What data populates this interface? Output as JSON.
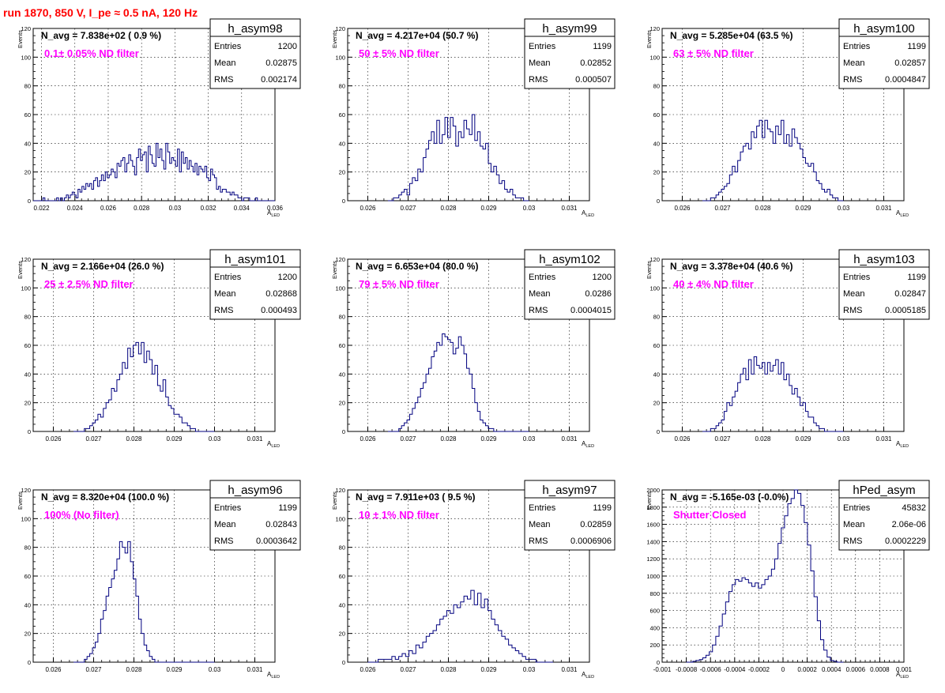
{
  "suptitle": "run 1870,   850 V, I_pe ≈ 0.5 nA, 120 Hz",
  "colors": {
    "hist": "#00007f",
    "annotation": "#ff00ff",
    "suptitle": "#ff0000",
    "grid": "#000000"
  },
  "axis_labels": {
    "y": "Events",
    "x_main": "A",
    "x_sub": "LED"
  },
  "stats_labels": {
    "entries": "Entries",
    "mean": "Mean",
    "rms": "RMS"
  },
  "chart_data": [
    {
      "type": "histogram",
      "name": "h_asym98",
      "navg": "N_avg = 7.838e+02 ( 0.9 %)",
      "annotation": "0.1± 0.05% ND filter",
      "stats": {
        "entries": "1200",
        "mean": "0.02875",
        "rms": "0.002174"
      },
      "xlim": [
        0.0215,
        0.036
      ],
      "xticks": [
        "0.022",
        "0.024",
        "0.026",
        "0.028",
        "0.03",
        "0.032",
        "0.034",
        "0.036"
      ],
      "ylim": [
        0,
        120
      ],
      "yticks": [
        "0",
        "20",
        "40",
        "60",
        "80",
        "100",
        "120"
      ],
      "bin_edges": [
        0.0215,
        0.036
      ],
      "counts": [
        0,
        0,
        0,
        0,
        0,
        2,
        0,
        0,
        0,
        0,
        0,
        0,
        2,
        0,
        2,
        0,
        2,
        4,
        2,
        4,
        6,
        4,
        2,
        8,
        6,
        10,
        8,
        12,
        10,
        12,
        8,
        14,
        16,
        10,
        14,
        18,
        14,
        20,
        16,
        18,
        22,
        20,
        16,
        26,
        24,
        28,
        30,
        20,
        26,
        32,
        28,
        24,
        18,
        30,
        36,
        28,
        32,
        34,
        20,
        38,
        32,
        26,
        24,
        40,
        30,
        36,
        28,
        22,
        40,
        34,
        26,
        30,
        28,
        24,
        36,
        20,
        34,
        26,
        30,
        22,
        28,
        24,
        20,
        26,
        18,
        24,
        22,
        20,
        24,
        16,
        14,
        22,
        18,
        16,
        8,
        10,
        6,
        8,
        8,
        6,
        6,
        4,
        6,
        4,
        4,
        2,
        2,
        0,
        2,
        2,
        2,
        0,
        0,
        0,
        2,
        0,
        0,
        0,
        0,
        0,
        0,
        0,
        0,
        0
      ]
    },
    {
      "type": "histogram",
      "name": "h_asym99",
      "navg": "N_avg = 4.217e+04 (50.7 %)",
      "annotation": "50 ± 5% ND filter",
      "stats": {
        "entries": "1199",
        "mean": "0.02852",
        "rms": "0.000507"
      },
      "xlim": [
        0.0255,
        0.0315
      ],
      "xticks": [
        "0.026",
        "0.027",
        "0.028",
        "0.029",
        "0.03",
        "0.031"
      ],
      "ylim": [
        0,
        120
      ],
      "yticks": [
        "0",
        "20",
        "40",
        "60",
        "80",
        "100",
        "120"
      ],
      "bin_edges": [
        0.0265,
        0.03
      ],
      "counts": [
        0,
        0,
        2,
        2,
        4,
        6,
        8,
        4,
        12,
        16,
        14,
        22,
        20,
        30,
        36,
        42,
        48,
        40,
        56,
        40,
        46,
        58,
        44,
        58,
        52,
        38,
        48,
        44,
        56,
        50,
        46,
        60,
        42,
        48,
        38,
        36,
        40,
        26,
        20,
        24,
        18,
        12,
        14,
        8,
        6,
        8,
        4,
        2,
        2,
        2,
        0,
        0
      ]
    },
    {
      "type": "histogram",
      "name": "h_asym100",
      "navg": "N_avg = 5.285e+04 (63.5 %)",
      "annotation": "63 ± 5% ND filter",
      "stats": {
        "entries": "1199",
        "mean": "0.02857",
        "rms": "0.0004847"
      },
      "xlim": [
        0.0255,
        0.0315
      ],
      "xticks": [
        "0.026",
        "0.027",
        "0.028",
        "0.029",
        "0.03",
        "0.031"
      ],
      "ylim": [
        0,
        120
      ],
      "yticks": [
        "0",
        "20",
        "40",
        "60",
        "80",
        "100",
        "120"
      ],
      "bin_edges": [
        0.0265,
        0.03
      ],
      "counts": [
        0,
        0,
        0,
        2,
        2,
        4,
        6,
        8,
        10,
        12,
        18,
        24,
        20,
        28,
        34,
        38,
        40,
        36,
        48,
        44,
        52,
        56,
        44,
        56,
        50,
        48,
        40,
        52,
        46,
        56,
        40,
        46,
        38,
        50,
        44,
        40,
        36,
        30,
        26,
        24,
        26,
        20,
        14,
        12,
        8,
        6,
        8,
        4,
        2,
        2,
        0,
        0
      ]
    },
    {
      "type": "histogram",
      "name": "h_asym101",
      "navg": "N_avg = 2.166e+04 (26.0 %)",
      "annotation": "25 ± 2.5% ND filter",
      "stats": {
        "entries": "1200",
        "mean": "0.02868",
        "rms": "0.000493"
      },
      "xlim": [
        0.0255,
        0.0315
      ],
      "xticks": [
        "0.026",
        "0.027",
        "0.028",
        "0.029",
        "0.03",
        "0.031"
      ],
      "ylim": [
        0,
        120
      ],
      "yticks": [
        "0",
        "20",
        "40",
        "60",
        "80",
        "100",
        "120"
      ],
      "bin_edges": [
        0.0265,
        0.03
      ],
      "counts": [
        0,
        0,
        0,
        0,
        2,
        2,
        4,
        6,
        8,
        12,
        10,
        16,
        20,
        22,
        30,
        28,
        36,
        40,
        48,
        44,
        58,
        52,
        60,
        62,
        54,
        62,
        48,
        56,
        50,
        40,
        46,
        32,
        28,
        36,
        24,
        18,
        16,
        12,
        12,
        10,
        6,
        6,
        4,
        2,
        2,
        0,
        0,
        0,
        0,
        0,
        0,
        0
      ]
    },
    {
      "type": "histogram",
      "name": "h_asym102",
      "navg": "N_avg = 6.653e+04 (80.0 %)",
      "annotation": "79 ± 5% ND filter",
      "stats": {
        "entries": "1200",
        "mean": "0.0286",
        "rms": "0.0004015"
      },
      "xlim": [
        0.0255,
        0.0315
      ],
      "xticks": [
        "0.026",
        "0.027",
        "0.028",
        "0.029",
        "0.03",
        "0.031"
      ],
      "ylim": [
        0,
        120
      ],
      "yticks": [
        "0",
        "20",
        "40",
        "60",
        "80",
        "100",
        "120"
      ],
      "bin_edges": [
        0.0265,
        0.03
      ],
      "counts": [
        0,
        0,
        0,
        0,
        2,
        4,
        6,
        8,
        12,
        16,
        20,
        24,
        30,
        34,
        40,
        44,
        52,
        56,
        62,
        60,
        68,
        66,
        64,
        62,
        54,
        58,
        66,
        60,
        54,
        44,
        40,
        30,
        20,
        14,
        8,
        6,
        4,
        2,
        2,
        0,
        0,
        0,
        0,
        0,
        0,
        0,
        0,
        0,
        0,
        0,
        0,
        0
      ]
    },
    {
      "type": "histogram",
      "name": "h_asym103",
      "navg": "N_avg = 3.378e+04 (40.6 %)",
      "annotation": "40 ± 4% ND filter",
      "stats": {
        "entries": "1199",
        "mean": "0.02847",
        "rms": "0.0005185"
      },
      "xlim": [
        0.0255,
        0.0315
      ],
      "xticks": [
        "0.026",
        "0.027",
        "0.028",
        "0.029",
        "0.03",
        "0.031"
      ],
      "ylim": [
        0,
        120
      ],
      "yticks": [
        "0",
        "20",
        "40",
        "60",
        "80",
        "100",
        "120"
      ],
      "bin_edges": [
        0.0265,
        0.03
      ],
      "counts": [
        0,
        0,
        0,
        2,
        2,
        4,
        6,
        8,
        14,
        20,
        18,
        24,
        28,
        34,
        40,
        44,
        36,
        50,
        40,
        52,
        46,
        44,
        48,
        40,
        48,
        42,
        46,
        50,
        40,
        48,
        36,
        40,
        32,
        26,
        30,
        24,
        18,
        20,
        14,
        10,
        10,
        6,
        4,
        2,
        2,
        0,
        0,
        0,
        0,
        0,
        0,
        0
      ]
    },
    {
      "type": "histogram",
      "name": "h_asym96",
      "navg": "N_avg = 8.320e+04 (100.0 %)",
      "annotation": "100% (No filter)",
      "stats": {
        "entries": "1199",
        "mean": "0.02843",
        "rms": "0.0003642"
      },
      "xlim": [
        0.0255,
        0.0315
      ],
      "xticks": [
        "0.026",
        "0.027",
        "0.028",
        "0.029",
        "0.03",
        "0.031"
      ],
      "ylim": [
        0,
        120
      ],
      "yticks": [
        "0",
        "20",
        "40",
        "60",
        "80",
        "100",
        "120"
      ],
      "bin_edges": [
        0.0265,
        0.03
      ],
      "counts": [
        0,
        0,
        0,
        0,
        2,
        4,
        6,
        10,
        14,
        20,
        30,
        36,
        46,
        52,
        58,
        64,
        72,
        84,
        80,
        76,
        84,
        70,
        58,
        46,
        30,
        20,
        12,
        8,
        4,
        2,
        0,
        0,
        0,
        0,
        0,
        0,
        0,
        0,
        0,
        0,
        0,
        0,
        0,
        0,
        0,
        0,
        0,
        0,
        0,
        0,
        0,
        0
      ]
    },
    {
      "type": "histogram",
      "name": "h_asym97",
      "navg": "N_avg = 7.911e+03 ( 9.5 %)",
      "annotation": "10 ± 1% ND filter",
      "stats": {
        "entries": "1199",
        "mean": "0.02859",
        "rms": "0.0006906"
      },
      "xlim": [
        0.0255,
        0.0315
      ],
      "xticks": [
        "0.026",
        "0.027",
        "0.028",
        "0.029",
        "0.03",
        "0.031"
      ],
      "ylim": [
        0,
        120
      ],
      "yticks": [
        "0",
        "20",
        "40",
        "60",
        "80",
        "100",
        "120"
      ],
      "bin_edges": [
        0.026,
        0.0306
      ],
      "counts": [
        0,
        0,
        0,
        2,
        2,
        2,
        2,
        4,
        2,
        4,
        6,
        4,
        8,
        6,
        12,
        10,
        14,
        18,
        20,
        22,
        26,
        30,
        32,
        36,
        34,
        40,
        38,
        42,
        46,
        44,
        50,
        40,
        48,
        38,
        44,
        36,
        30,
        26,
        22,
        18,
        16,
        12,
        10,
        8,
        6,
        4,
        2,
        2,
        2,
        0,
        0,
        0,
        0,
        0
      ]
    },
    {
      "type": "histogram",
      "name": "hPed_asym",
      "navg": "N_avg = -5.165e-03 (-0.0%)",
      "annotation": "Shutter Closed",
      "stats": {
        "entries": "45832",
        "mean": "2.06e-06",
        "rms": "0.0002229"
      },
      "xlim": [
        -0.001,
        0.001
      ],
      "xticks": [
        "-0.001",
        "-0.0008",
        "-0.0006",
        "-0.0004",
        "-0.0002",
        "0",
        "0.0002",
        "0.0004",
        "0.0006",
        "0.0008",
        "0.001"
      ],
      "ylim": [
        0,
        2000
      ],
      "yticks": [
        "0",
        "200",
        "400",
        "600",
        "800",
        "1000",
        "1200",
        "1400",
        "1600",
        "1800",
        "2000"
      ],
      "bin_edges": [
        -0.0008,
        0.0005
      ],
      "counts": [
        0,
        0,
        10,
        20,
        30,
        50,
        80,
        120,
        200,
        300,
        420,
        560,
        700,
        820,
        900,
        960,
        940,
        980,
        960,
        920,
        880,
        920,
        860,
        900,
        960,
        1000,
        1080,
        1200,
        1380,
        1560,
        1700,
        1840,
        1900,
        2000,
        1960,
        1820,
        1620,
        1360,
        1060,
        760,
        480,
        260,
        140,
        60,
        20,
        10,
        0,
        0
      ]
    }
  ]
}
